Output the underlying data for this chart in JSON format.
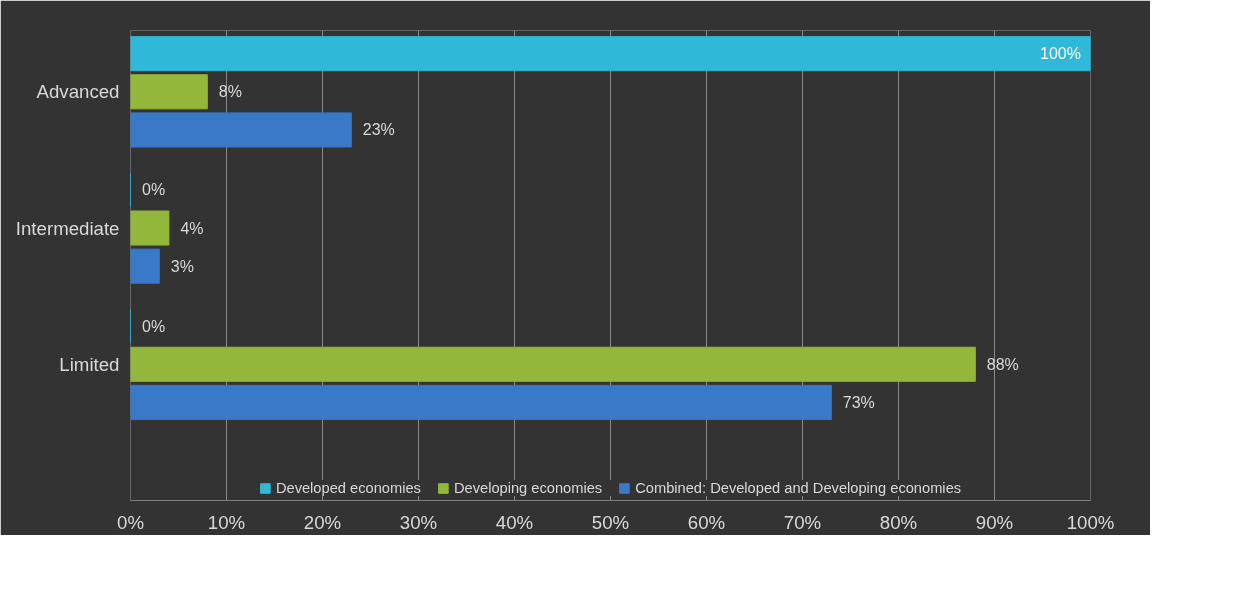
{
  "chart_data": {
    "type": "bar",
    "orientation": "horizontal",
    "categories": [
      "Advanced",
      "Intermediate",
      "Limited"
    ],
    "series": [
      {
        "name": "Developed economies",
        "color": "#2fb8d8",
        "values": [
          100,
          0,
          0
        ],
        "value_labels": [
          "100%",
          "0%",
          "0%"
        ]
      },
      {
        "name": "Developing economies",
        "color": "#92b73a",
        "values": [
          8,
          4,
          88
        ],
        "value_labels": [
          "8%",
          "4%",
          "88%"
        ]
      },
      {
        "name": "Combined: Developed and Developing economies",
        "color": "#3a78c8",
        "values": [
          23,
          3,
          73
        ],
        "value_labels": [
          "23%",
          "3%",
          "73%"
        ]
      }
    ],
    "xlim": [
      0,
      100
    ],
    "xticks": [
      {
        "value": 0,
        "label": "0%"
      },
      {
        "value": 10,
        "label": "10%"
      },
      {
        "value": 20,
        "label": "20%"
      },
      {
        "value": 30,
        "label": "30%"
      },
      {
        "value": 40,
        "label": "40%"
      },
      {
        "value": 50,
        "label": "50%"
      },
      {
        "value": 60,
        "label": "60%"
      },
      {
        "value": 70,
        "label": "70%"
      },
      {
        "value": 80,
        "label": "80%"
      },
      {
        "value": 90,
        "label": "90%"
      },
      {
        "value": 100,
        "label": "100%"
      }
    ],
    "grid": "x",
    "legend": "bottom"
  }
}
